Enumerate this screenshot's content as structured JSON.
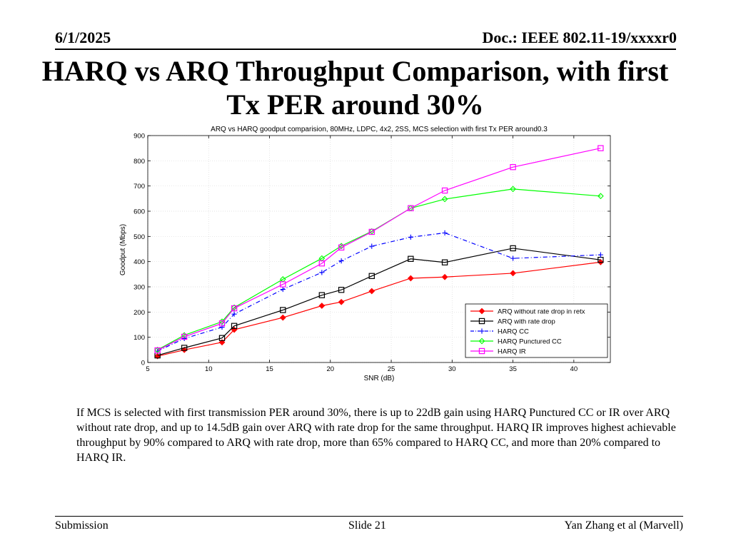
{
  "header": {
    "date": "6/1/2025",
    "doc_id": "Doc.: IEEE 802.11-19/xxxxr0"
  },
  "slide_title": "HARQ vs ARQ Throughput Comparison, with first Tx PER around 30%",
  "chart_data": {
    "type": "line",
    "title": "ARQ vs HARQ goodput comparision, 80MHz, LDPC, 4x2, 2SS, MCS selection with first Tx PER around0.3",
    "xlabel": "SNR (dB)",
    "ylabel": "Goodput (Mbps)",
    "xlim": [
      5,
      43
    ],
    "ylim": [
      0,
      900
    ],
    "xticks": [
      5,
      10,
      15,
      20,
      25,
      30,
      35,
      40
    ],
    "yticks": [
      0,
      100,
      200,
      300,
      400,
      500,
      600,
      700,
      800,
      900
    ],
    "grid": true,
    "legend_position": "bottom-right",
    "series": [
      {
        "name": "ARQ without rate drop in retx",
        "color": "#ff0000",
        "marker": "diamond",
        "dash": "solid",
        "x": [
          5.8,
          8,
          11.1,
          12.1,
          16.1,
          19.3,
          20.9,
          23.4,
          26.6,
          29.4,
          35,
          42.2
        ],
        "y": [
          25,
          50,
          80,
          130,
          178,
          225,
          240,
          283,
          334,
          339,
          354,
          398
        ]
      },
      {
        "name": "ARQ with rate drop",
        "color": "#000000",
        "marker": "square",
        "dash": "solid",
        "x": [
          5.8,
          8,
          11.1,
          12.1,
          16.1,
          19.3,
          20.9,
          23.4,
          26.6,
          29.4,
          35,
          42.2
        ],
        "y": [
          28,
          58,
          97,
          145,
          208,
          267,
          288,
          343,
          411,
          397,
          453,
          407
        ]
      },
      {
        "name": "HARQ CC",
        "color": "#0000ff",
        "marker": "plus",
        "dash": "dashdot",
        "x": [
          5.8,
          8,
          11.1,
          12.1,
          16.1,
          19.3,
          20.9,
          23.4,
          26.6,
          29.4,
          35,
          42.2
        ],
        "y": [
          45,
          95,
          140,
          192,
          290,
          357,
          403,
          461,
          497,
          514,
          413,
          427
        ]
      },
      {
        "name": "HARQ Punctured CC",
        "color": "#00ff00",
        "marker": "diamond",
        "dash": "solid",
        "x": [
          5.8,
          8,
          11.1,
          12.1,
          16.1,
          19.3,
          20.9,
          23.4,
          26.6,
          29.4,
          35,
          42.2
        ],
        "y": [
          50,
          108,
          162,
          218,
          330,
          413,
          462,
          520,
          612,
          648,
          688,
          660
        ]
      },
      {
        "name": "HARQ IR",
        "color": "#ff00ff",
        "marker": "square",
        "dash": "solid",
        "x": [
          5.8,
          8,
          11.1,
          12.1,
          16.1,
          19.3,
          20.9,
          23.4,
          26.6,
          29.4,
          35,
          42.2
        ],
        "y": [
          48,
          102,
          155,
          215,
          310,
          393,
          456,
          518,
          612,
          682,
          775,
          850
        ]
      }
    ]
  },
  "body_text": "If MCS is selected with first transmission PER around 30%, there is up to 22dB gain using HARQ Punctured CC or IR over ARQ without rate drop, and up to 14.5dB gain over ARQ with rate drop for the same throughput. HARQ IR improves highest achievable throughput by 90% compared to ARQ with rate drop, more than 65% compared to HARQ CC, and more than 20% compared to HARQ IR.",
  "footer": {
    "left": "Submission",
    "center": "Slide 21",
    "right": "Yan Zhang et al (Marvell)"
  }
}
